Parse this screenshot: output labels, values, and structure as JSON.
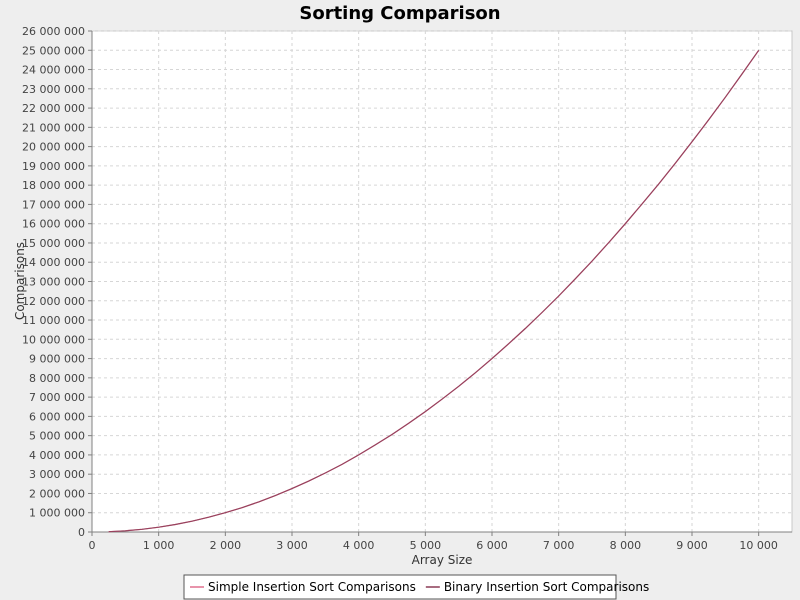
{
  "chart_data": {
    "type": "line",
    "title": "Sorting Comparison",
    "xlabel": "Array Size",
    "ylabel": "Comparisons",
    "xlim": [
      0,
      10500
    ],
    "ylim": [
      0,
      26000000
    ],
    "x_ticks": [
      0,
      1000,
      2000,
      3000,
      4000,
      5000,
      6000,
      7000,
      8000,
      9000,
      10000
    ],
    "x_tick_labels": [
      "0",
      "1 000",
      "2 000",
      "3 000",
      "4 000",
      "5 000",
      "6 000",
      "7 000",
      "8 000",
      "9 000",
      "10 000"
    ],
    "y_ticks": [
      0,
      1000000,
      2000000,
      3000000,
      4000000,
      5000000,
      6000000,
      7000000,
      8000000,
      9000000,
      10000000,
      11000000,
      12000000,
      13000000,
      14000000,
      15000000,
      16000000,
      17000000,
      18000000,
      19000000,
      20000000,
      21000000,
      22000000,
      23000000,
      24000000,
      25000000,
      26000000
    ],
    "y_tick_labels": [
      "0",
      "1 000 000",
      "2 000 000",
      "3 000 000",
      "4 000 000",
      "5 000 000",
      "6 000 000",
      "7 000 000",
      "8 000 000",
      "9 000 000",
      "10 000 000",
      "11 000 000",
      "12 000 000",
      "13 000 000",
      "14 000 000",
      "15 000 000",
      "16 000 000",
      "17 000 000",
      "18 000 000",
      "19 000 000",
      "20 000 000",
      "21 000 000",
      "22 000 000",
      "23 000 000",
      "24 000 000",
      "25 000 000",
      "26 000 000"
    ],
    "grid": true,
    "legend_position": "bottom",
    "x": [
      250,
      500,
      750,
      1000,
      1250,
      1500,
      1750,
      2000,
      2250,
      2500,
      2750,
      3000,
      3250,
      3500,
      3750,
      4000,
      4250,
      4500,
      4750,
      5000,
      5250,
      5500,
      5750,
      6000,
      6250,
      6500,
      6750,
      7000,
      7250,
      7500,
      7750,
      8000,
      8250,
      8500,
      8750,
      9000,
      9250,
      9500,
      9750,
      10000
    ],
    "series": [
      {
        "name": "Simple Insertion Sort Comparisons",
        "color": "#e0708f",
        "values": [
          15000,
          60000,
          140000,
          250000,
          390000,
          560000,
          770000,
          1000000,
          1260000,
          1560000,
          1890000,
          2250000,
          2640000,
          3060000,
          3510000,
          4000000,
          4520000,
          5060000,
          5640000,
          6250000,
          6890000,
          7560000,
          8260000,
          9000000,
          9770000,
          10560000,
          11390000,
          12250000,
          13140000,
          14060000,
          15020000,
          16000000,
          17020000,
          18060000,
          19140000,
          20250000,
          21390000,
          22560000,
          23770000,
          25000000
        ]
      },
      {
        "name": "Binary Insertion Sort Comparisons",
        "color": "#8a3a55",
        "values": [
          15000,
          60000,
          140000,
          250000,
          390000,
          560000,
          770000,
          1000000,
          1260000,
          1560000,
          1890000,
          2250000,
          2640000,
          3060000,
          3510000,
          4000000,
          4520000,
          5060000,
          5640000,
          6250000,
          6890000,
          7560000,
          8260000,
          9000000,
          9770000,
          10560000,
          11390000,
          12250000,
          13140000,
          14060000,
          15020000,
          16000000,
          17020000,
          18060000,
          19140000,
          20250000,
          21390000,
          22560000,
          23770000,
          25000000
        ]
      }
    ]
  }
}
